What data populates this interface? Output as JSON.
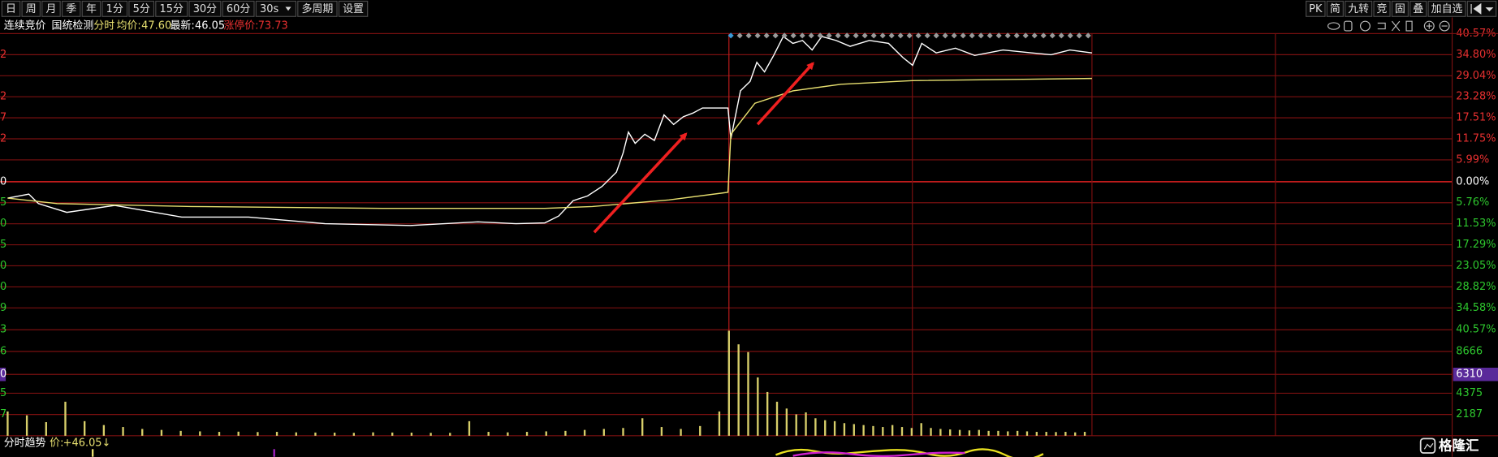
{
  "toolbar": {
    "left": [
      "日",
      "周",
      "月",
      "季",
      "年",
      "1分",
      "5分",
      "15分",
      "30分",
      "60分",
      "30s",
      "多周期",
      "设置"
    ],
    "right": [
      "PK",
      "简",
      "九转",
      "竞",
      "固",
      "叠",
      "加自选"
    ]
  },
  "info_bar": {
    "mode": "连续竞价",
    "detect": "国统检测",
    "view": "分时",
    "avg_label": "均价:",
    "avg": "47.60",
    "latest_label": "最新:",
    "latest": "46.05",
    "limit_label": "涨停价:",
    "limit": "73.73"
  },
  "footer": {
    "title": "分时趋势",
    "price_label": "价:",
    "price": "+46.05↓",
    "logo": "格隆汇"
  },
  "chart_data": [
    {
      "type": "line",
      "xlim": [
        0,
        300
      ],
      "ylim": [
        -40.57,
        40.57
      ],
      "grid": true,
      "up_color": "#e83030",
      "down_color": "#2ec82e",
      "zero_color": "#ffffff",
      "grid_color": "#7a1010",
      "yticks": [
        {
          "value": 40.57,
          "label": "40.57%"
        },
        {
          "value": 34.8,
          "label": "34.80%"
        },
        {
          "value": 29.04,
          "label": "29.04%"
        },
        {
          "value": 23.28,
          "label": "23.28%"
        },
        {
          "value": 17.51,
          "label": "17.51%"
        },
        {
          "value": 11.75,
          "label": "11.75%"
        },
        {
          "value": 5.99,
          "label": "5.99%"
        },
        {
          "value": 0,
          "label": "0.00%"
        },
        {
          "value": -5.76,
          "label": "5.76%"
        },
        {
          "value": -11.53,
          "label": "11.53%"
        },
        {
          "value": -17.29,
          "label": "17.29%"
        },
        {
          "value": -23.05,
          "label": "23.05%"
        },
        {
          "value": -28.82,
          "label": "28.82%"
        },
        {
          "value": -34.58,
          "label": "34.58%"
        },
        {
          "value": -40.57,
          "label": "40.57%"
        }
      ],
      "left_tick_fragments": [
        null,
        "2",
        null,
        "2",
        "7",
        "2",
        null,
        "0",
        "5",
        "0",
        "5",
        "0",
        "0",
        "9",
        "3"
      ],
      "series": [
        {
          "color": "#ffffff",
          "x": [
            0,
            4.4,
            6.4,
            12.3,
            22.3,
            36.2,
            50.1,
            66,
            83.8,
            97.8,
            105.7,
            111.7,
            114.6,
            117.6,
            120.6,
            123.6,
            126.6,
            128,
            129.1,
            130.5,
            132.5,
            134.5,
            136.5,
            138.5,
            140.5,
            142.5,
            144.5,
            149.8,
            150.4,
            152.4,
            154.4,
            155.8,
            157.4,
            159.3,
            161.3,
            163.3,
            165.3,
            167.3,
            169.3,
            172.3,
            175.2,
            179.2,
            183.2,
            186.2,
            188.2,
            190.1,
            193.1,
            197.1,
            201.1,
            207,
            213,
            217,
            220.9,
            225.5
          ],
          "values": [
            -4.5,
            -3.4,
            -6,
            -8.4,
            -6.5,
            -9.7,
            -9.7,
            -11.5,
            -12,
            -11,
            -11.5,
            -11.3,
            -9.4,
            -5.2,
            -3.9,
            -1.3,
            2.6,
            7.9,
            13.6,
            10.5,
            13,
            11.3,
            18.3,
            15.7,
            17.8,
            18.8,
            20.2,
            20.2,
            11.8,
            24.9,
            27.5,
            32.7,
            30.1,
            34.6,
            39.8,
            37.9,
            38.7,
            36.1,
            39.8,
            38.7,
            37.1,
            38.7,
            37.9,
            34,
            31.9,
            37.9,
            35.3,
            36.6,
            34.6,
            36.1,
            35.3,
            34.8,
            36.1,
            35.3
          ]
        },
        {
          "color": "#e8e070",
          "x": [
            0,
            10.3,
            38.2,
            77.9,
            111.7,
            121.6,
            137.5,
            149.8,
            150.4,
            155.4,
            163.3,
            173.3,
            188.2,
            225.5
          ],
          "values": [
            -4.5,
            -6,
            -6.8,
            -7.3,
            -7.3,
            -6.8,
            -5,
            -2.9,
            13,
            21.5,
            24.9,
            26.7,
            27.7,
            28.3
          ]
        }
      ]
    },
    {
      "type": "bar",
      "xlim": [
        0,
        300
      ],
      "ylim": [
        0,
        10900
      ],
      "grid": true,
      "color": "#d8cf6a",
      "tick_color": "#2ec82e",
      "grid_color": "#7a1010",
      "yticks": [
        2187,
        4375,
        8666
      ],
      "left_tick_fragments": [
        "7",
        "5",
        "6"
      ],
      "cursor_value": 6310,
      "cursor_fragment": "0",
      "cursor_color": "#5a2a9a",
      "x": [
        0,
        4,
        8,
        12,
        16,
        20,
        24,
        28,
        32,
        36,
        40,
        44,
        48,
        52,
        56,
        60,
        64,
        68,
        72,
        76,
        80,
        84,
        88,
        92,
        96,
        100,
        104,
        108,
        112,
        116,
        120,
        124,
        128,
        132,
        136,
        140,
        144,
        148,
        150,
        152,
        154,
        156,
        158,
        160,
        162,
        164,
        166,
        168,
        170,
        172,
        174,
        176,
        178,
        180,
        182,
        184,
        186,
        188,
        190,
        192,
        194,
        196,
        198,
        200,
        202,
        204,
        206,
        208,
        210,
        212,
        214,
        216,
        218,
        220,
        222,
        224
      ],
      "values": [
        2500,
        2100,
        1400,
        3500,
        1500,
        1100,
        900,
        700,
        600,
        500,
        450,
        400,
        420,
        380,
        400,
        350,
        330,
        320,
        300,
        350,
        330,
        320,
        300,
        300,
        1500,
        400,
        350,
        400,
        450,
        500,
        600,
        700,
        800,
        1800,
        900,
        700,
        1000,
        2500,
        10800,
        9400,
        8600,
        6000,
        4500,
        3500,
        2800,
        2200,
        2400,
        1800,
        1600,
        1500,
        1300,
        1200,
        1100,
        1000,
        900,
        1100,
        900,
        800,
        1300,
        800,
        700,
        650,
        600,
        550,
        600,
        500,
        500,
        450,
        500,
        450,
        400,
        400,
        380,
        400,
        350,
        400
      ]
    }
  ]
}
